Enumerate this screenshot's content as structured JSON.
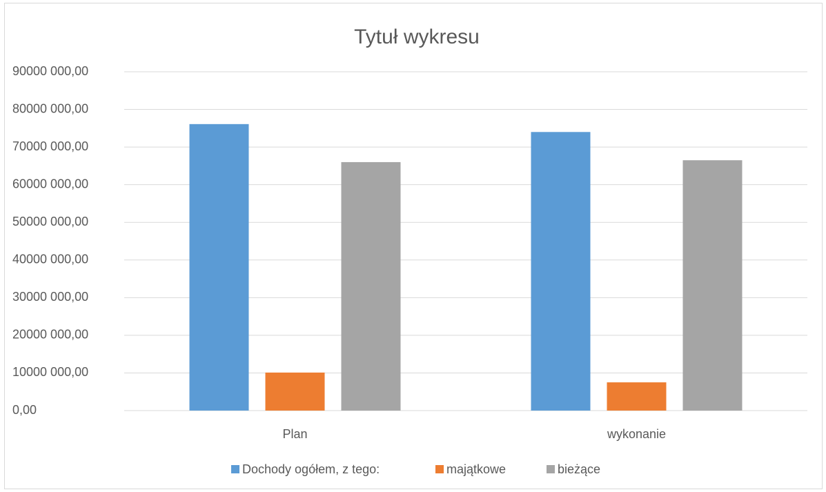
{
  "chart_data": {
    "type": "bar",
    "title": "Tytuł wykresu",
    "categories": [
      "Plan",
      "wykonanie"
    ],
    "series": [
      {
        "name": "Dochody ogółem, z tego:",
        "color": "#5b9bd5",
        "values": [
          76100000,
          74000000
        ]
      },
      {
        "name": "majątkowe",
        "color": "#ed7d31",
        "values": [
          10100000,
          7500000
        ]
      },
      {
        "name": "bieżące",
        "color": "#a5a5a5",
        "values": [
          66000000,
          66500000
        ]
      }
    ],
    "ylim": [
      0,
      90000000
    ],
    "yticks": [
      {
        "value": 0,
        "label": "0,00"
      },
      {
        "value": 10000000,
        "label": "10000 000,00"
      },
      {
        "value": 20000000,
        "label": "20000 000,00"
      },
      {
        "value": 30000000,
        "label": "30000 000,00"
      },
      {
        "value": 40000000,
        "label": "40000 000,00"
      },
      {
        "value": 50000000,
        "label": "50000 000,00"
      },
      {
        "value": 60000000,
        "label": "60000 000,00"
      },
      {
        "value": 70000000,
        "label": "70000 000,00"
      },
      {
        "value": 80000000,
        "label": "80000 000,00"
      },
      {
        "value": 90000000,
        "label": "90000 000,00"
      }
    ],
    "grid": true,
    "legend": "bottom"
  }
}
